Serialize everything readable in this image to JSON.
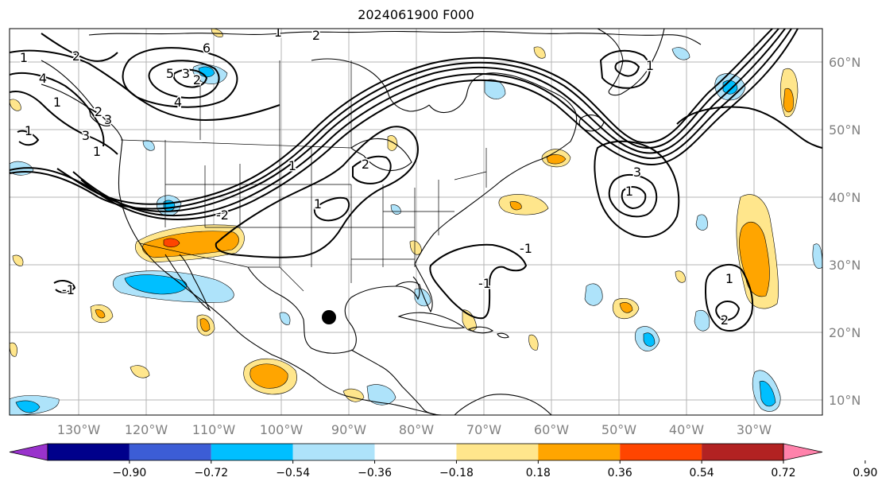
{
  "title": "2024061900 F000",
  "lon_labels": [
    "130°W",
    "120°W",
    "110°W",
    "100°W",
    "90°W",
    "80°W",
    "70°W",
    "60°W",
    "50°W",
    "40°W",
    "30°W"
  ],
  "lat_labels": [
    "60°N",
    "50°N",
    "40°N",
    "30°N",
    "20°N",
    "10°N"
  ],
  "colorbar": {
    "labels": [
      "−0.90",
      "−0.72",
      "−0.54",
      "−0.36",
      "−0.18",
      "0.18",
      "0.36",
      "0.54",
      "0.72",
      "0.90"
    ],
    "colors": [
      "#9932cc",
      "#00008b",
      "#3c5dd6",
      "#00bfff",
      "#aee3fa",
      "#ffffff",
      "#ffe68c",
      "#ffa500",
      "#ff4500",
      "#b22222",
      "#ff82ab"
    ]
  },
  "contour_labels": [
    "1",
    "2",
    "3",
    "4",
    "2",
    "5",
    "6",
    "1",
    "2",
    "3",
    "4",
    "-1",
    "1",
    "1",
    "2",
    "3",
    "1",
    "-1",
    "-1",
    "1",
    "2",
    "1",
    "-2",
    "1",
    "1",
    "1",
    "2",
    "3"
  ],
  "colors": {
    "negative": "#00bfff",
    "negative_light": "#aee3fa",
    "positive_light": "#ffe68c",
    "positive": "#ffa500",
    "strong_positive": "#ff4500",
    "strong_negative": "#3c5dd6"
  },
  "marker": {
    "icon": "storm-center-dot"
  }
}
